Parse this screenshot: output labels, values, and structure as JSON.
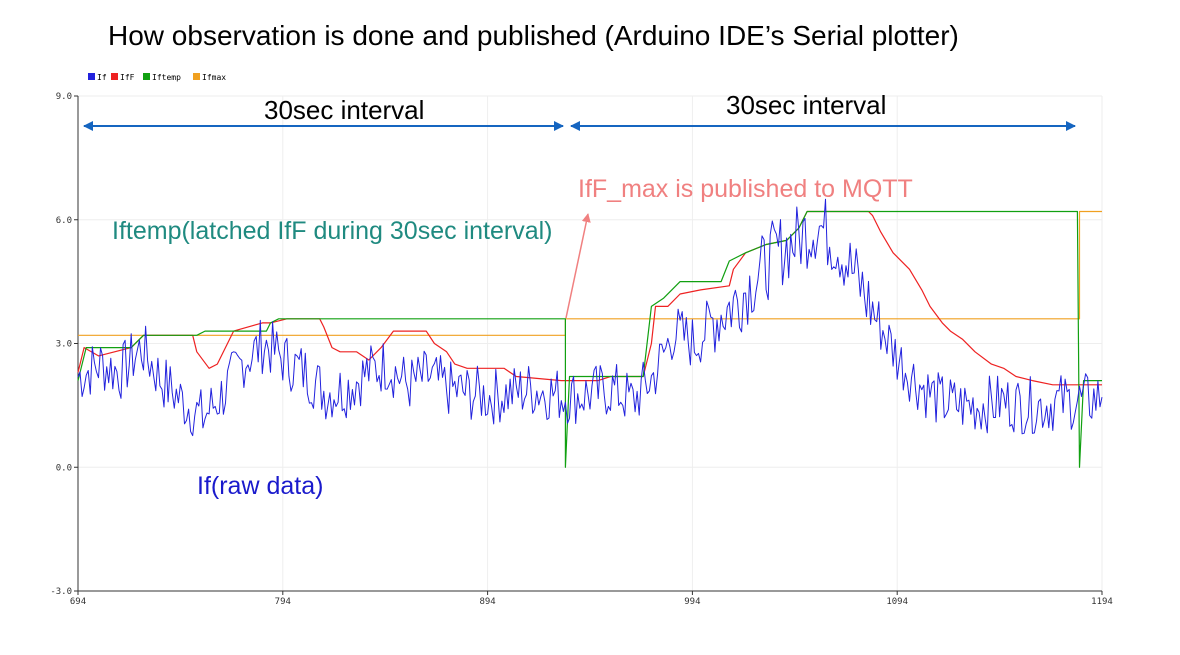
{
  "title": "How observation is done and published (Arduino IDE’s Serial plotter)",
  "colors": {
    "If": "#2222dd",
    "IfF": "#ee2222",
    "Iftemp": "#11a011",
    "Ifmax": "#f0a020",
    "arrow": "#1565c0",
    "ann_publish": "#f08080",
    "ann_latched": "#1f8a80",
    "ann_raw": "#1a1acc"
  },
  "annotations": {
    "interval1": "30sec interval",
    "interval2": "30sec interval",
    "publish": "IfF_max is published to MQTT",
    "latched": "Iftemp(latched IfF during 30sec interval)",
    "raw": "If(raw data)"
  },
  "chart_data": {
    "type": "line",
    "xlim": [
      694,
      1194
    ],
    "ylim": [
      -3.0,
      9.0
    ],
    "xticks": [
      694,
      794,
      894,
      994,
      1094,
      1194
    ],
    "yticks": [
      "9.0",
      "6.0",
      "3.0",
      "0.0",
      "-3.0"
    ],
    "grid": true,
    "legend": "top-left",
    "series": [
      {
        "name": "If",
        "noisy": true,
        "values": [
          [
            694,
            2.2
          ],
          [
            705,
            2.5
          ],
          [
            715,
            2.3
          ],
          [
            725,
            2.9
          ],
          [
            735,
            2.1
          ],
          [
            745,
            1.6
          ],
          [
            755,
            1.2
          ],
          [
            765,
            1.8
          ],
          [
            775,
            2.6
          ],
          [
            785,
            3.0
          ],
          [
            795,
            2.6
          ],
          [
            805,
            2.3
          ],
          [
            815,
            1.8
          ],
          [
            825,
            1.9
          ],
          [
            835,
            2.3
          ],
          [
            845,
            2.5
          ],
          [
            855,
            2.0
          ],
          [
            865,
            2.2
          ],
          [
            875,
            1.9
          ],
          [
            885,
            1.8
          ],
          [
            895,
            1.7
          ],
          [
            905,
            1.8
          ],
          [
            915,
            1.9
          ],
          [
            925,
            1.8
          ],
          [
            935,
            1.7
          ],
          [
            945,
            1.8
          ],
          [
            955,
            1.9
          ],
          [
            965,
            1.6
          ],
          [
            975,
            2.2
          ],
          [
            985,
            3.3
          ],
          [
            995,
            3.0
          ],
          [
            1005,
            3.6
          ],
          [
            1015,
            4.0
          ],
          [
            1025,
            4.6
          ],
          [
            1035,
            5.2
          ],
          [
            1045,
            5.5
          ],
          [
            1055,
            5.9
          ],
          [
            1065,
            5.4
          ],
          [
            1075,
            4.5
          ],
          [
            1085,
            3.5
          ],
          [
            1095,
            2.6
          ],
          [
            1105,
            2.0
          ],
          [
            1115,
            1.6
          ],
          [
            1125,
            1.5
          ],
          [
            1135,
            1.5
          ],
          [
            1145,
            1.6
          ],
          [
            1155,
            1.5
          ],
          [
            1165,
            1.5
          ],
          [
            1175,
            1.6
          ],
          [
            1185,
            1.6
          ],
          [
            1194,
            1.7
          ]
        ]
      },
      {
        "name": "IfF",
        "values": [
          [
            694,
            2.3
          ],
          [
            697,
            2.9
          ],
          [
            704,
            2.7
          ],
          [
            720,
            2.9
          ],
          [
            726,
            3.2
          ],
          [
            750,
            3.2
          ],
          [
            752,
            2.8
          ],
          [
            758,
            2.4
          ],
          [
            762,
            2.5
          ],
          [
            770,
            3.3
          ],
          [
            784,
            3.5
          ],
          [
            788,
            3.5
          ],
          [
            796,
            3.6
          ],
          [
            812,
            3.6
          ],
          [
            814,
            3.4
          ],
          [
            818,
            2.9
          ],
          [
            822,
            2.8
          ],
          [
            830,
            2.8
          ],
          [
            836,
            2.6
          ],
          [
            842,
            2.9
          ],
          [
            848,
            3.3
          ],
          [
            864,
            3.3
          ],
          [
            868,
            3.0
          ],
          [
            874,
            2.8
          ],
          [
            878,
            2.5
          ],
          [
            884,
            2.4
          ],
          [
            902,
            2.4
          ],
          [
            908,
            2.2
          ],
          [
            930,
            2.1
          ],
          [
            948,
            2.1
          ],
          [
            954,
            2.2
          ],
          [
            970,
            2.2
          ],
          [
            974,
            3.0
          ],
          [
            976,
            3.9
          ],
          [
            982,
            3.9
          ],
          [
            988,
            4.2
          ],
          [
            998,
            4.3
          ],
          [
            1012,
            4.4
          ],
          [
            1014,
            4.8
          ],
          [
            1020,
            5.2
          ],
          [
            1030,
            5.4
          ],
          [
            1040,
            5.5
          ],
          [
            1046,
            5.8
          ],
          [
            1050,
            6.2
          ],
          [
            1080,
            6.2
          ],
          [
            1082,
            6.1
          ],
          [
            1086,
            5.7
          ],
          [
            1092,
            5.2
          ],
          [
            1100,
            4.8
          ],
          [
            1106,
            4.3
          ],
          [
            1110,
            3.9
          ],
          [
            1116,
            3.5
          ],
          [
            1120,
            3.3
          ],
          [
            1126,
            3.1
          ],
          [
            1132,
            2.8
          ],
          [
            1140,
            2.5
          ],
          [
            1146,
            2.4
          ],
          [
            1152,
            2.2
          ],
          [
            1160,
            2.1
          ],
          [
            1170,
            2.0
          ],
          [
            1185,
            2.0
          ],
          [
            1194,
            2.0
          ]
        ]
      },
      {
        "name": "Iftemp",
        "values": [
          [
            694,
            2.1
          ],
          [
            698,
            2.9
          ],
          [
            720,
            2.9
          ],
          [
            726,
            3.2
          ],
          [
            752,
            3.2
          ],
          [
            756,
            3.3
          ],
          [
            786,
            3.3
          ],
          [
            788,
            3.5
          ],
          [
            792,
            3.6
          ],
          [
            932,
            3.6
          ],
          [
            932,
            0.0
          ],
          [
            934,
            2.2
          ],
          [
            970,
            2.2
          ],
          [
            974,
            3.9
          ],
          [
            980,
            4.1
          ],
          [
            988,
            4.5
          ],
          [
            1008,
            4.5
          ],
          [
            1012,
            5.0
          ],
          [
            1020,
            5.2
          ],
          [
            1030,
            5.4
          ],
          [
            1040,
            5.5
          ],
          [
            1046,
            5.8
          ],
          [
            1050,
            6.2
          ],
          [
            1182,
            6.2
          ],
          [
            1183,
            0.0
          ],
          [
            1185,
            2.1
          ],
          [
            1194,
            2.1
          ]
        ]
      },
      {
        "name": "Ifmax",
        "values": [
          [
            694,
            3.2
          ],
          [
            932,
            3.2
          ],
          [
            932,
            3.6
          ],
          [
            1183,
            3.6
          ],
          [
            1183,
            6.2
          ],
          [
            1194,
            6.2
          ]
        ]
      }
    ]
  }
}
